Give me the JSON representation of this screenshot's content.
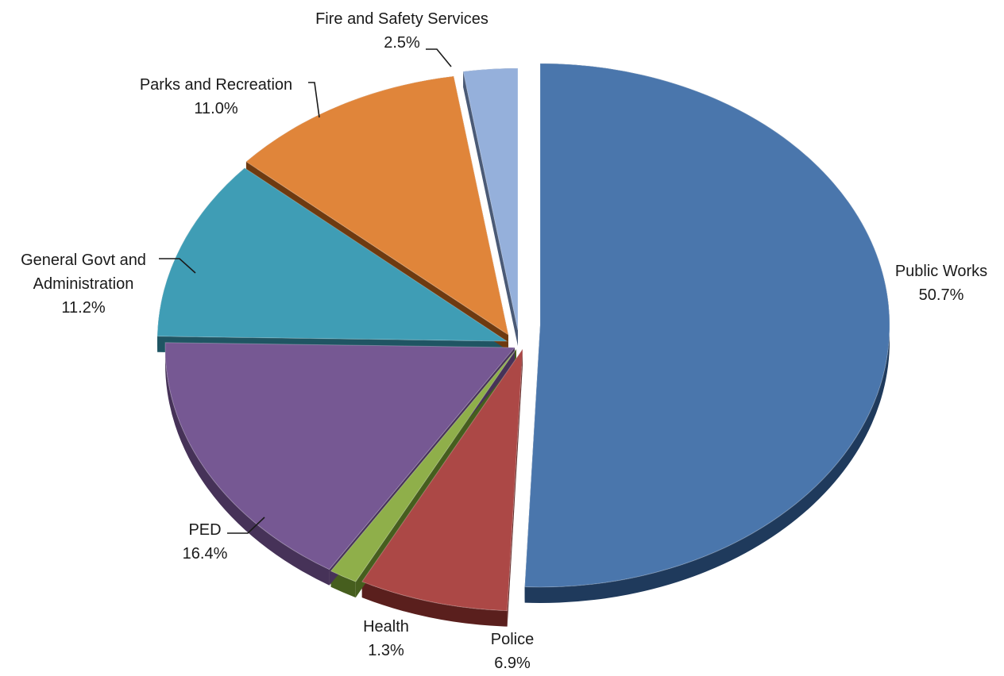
{
  "chart_data": {
    "type": "pie",
    "variant": "3d-exploded",
    "title": "",
    "start_angle_deg": 0,
    "direction": "clockwise",
    "slices": [
      {
        "name": "Public Works",
        "value": 50.7,
        "label": "50.7%",
        "color": "#4A76AC",
        "side": "#1F3A5C"
      },
      {
        "name": "Police",
        "value": 6.9,
        "label": "6.9%",
        "color": "#AC4846",
        "side": "#5A1F1D"
      },
      {
        "name": "Health",
        "value": 1.3,
        "label": "1.3%",
        "color": "#8FAF4A",
        "side": "#465E1E"
      },
      {
        "name": "PED",
        "value": 16.4,
        "label": "16.4%",
        "color": "#765893",
        "side": "#463258"
      },
      {
        "name": "General Govt and Administration",
        "name_lines": [
          "General Govt and",
          "Administration"
        ],
        "value": 11.2,
        "label": "11.2%",
        "color": "#3F9DB5",
        "side": "#1F5563"
      },
      {
        "name": "Parks and Recreation",
        "value": 11.0,
        "label": "11.0%",
        "color": "#E0853A",
        "side": "#6E3A10"
      },
      {
        "name": "Fire and Safety Services",
        "value": 2.5,
        "label": "2.5%",
        "color": "#95B0DB",
        "side": "#4A5A76"
      }
    ]
  }
}
